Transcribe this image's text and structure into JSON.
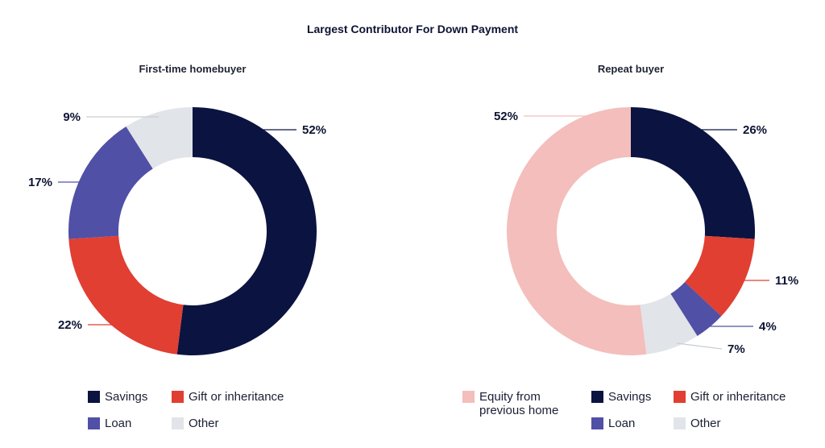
{
  "title": "Largest Contributor For Down Payment",
  "colors": {
    "savings": "#0b1340",
    "gift": "#e03f32",
    "loan": "#5050a6",
    "other": "#e1e4e8",
    "equity": "#f3bebb"
  },
  "chart_data": [
    {
      "type": "pie",
      "title": "First-time homebuyer",
      "donut": true,
      "slices": [
        {
          "label": "Savings",
          "value": 52,
          "display": "52%",
          "color": "#0b1340"
        },
        {
          "label": "Gift or inheritance",
          "value": 22,
          "display": "22%",
          "color": "#e03f32"
        },
        {
          "label": "Loan",
          "value": 17,
          "display": "17%",
          "color": "#5050a6"
        },
        {
          "label": "Other",
          "value": 9,
          "display": "9%",
          "color": "#e1e4e8"
        }
      ],
      "legend": [
        {
          "label": "Savings",
          "color": "#0b1340"
        },
        {
          "label": "Gift or inheritance",
          "color": "#e03f32"
        },
        {
          "label": "Loan",
          "color": "#5050a6"
        },
        {
          "label": "Other",
          "color": "#e1e4e8"
        }
      ]
    },
    {
      "type": "pie",
      "title": "Repeat buyer",
      "donut": true,
      "slices": [
        {
          "label": "Savings",
          "value": 26,
          "display": "26%",
          "color": "#0b1340"
        },
        {
          "label": "Gift or inheritance",
          "value": 11,
          "display": "11%",
          "color": "#e03f32"
        },
        {
          "label": "Loan",
          "value": 4,
          "display": "4%",
          "color": "#5050a6"
        },
        {
          "label": "Other",
          "value": 7,
          "display": "7%",
          "color": "#e1e4e8"
        },
        {
          "label": "Equity from previous home",
          "value": 52,
          "display": "52%",
          "color": "#f3bebb"
        }
      ],
      "legend": [
        {
          "label": "Equity from previous home",
          "color": "#f3bebb"
        },
        {
          "label": "Savings",
          "color": "#0b1340"
        },
        {
          "label": "Gift or inheritance",
          "color": "#e03f32"
        },
        {
          "label": "Loan",
          "color": "#5050a6"
        },
        {
          "label": "Other",
          "color": "#e1e4e8"
        }
      ]
    }
  ]
}
